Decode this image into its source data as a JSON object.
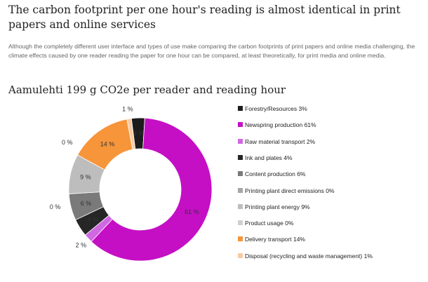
{
  "headline": "The carbon footprint per one hour's reading is almost identical in print papers and online services",
  "intro": "Although the completely different user interface and types of use make comparing the carbon footprints of print papers and online media challenging, the climate effects caused by one reader reading the paper for one hour can be compared, at least theoretically, for print media and online media.",
  "chart_data": {
    "type": "pie",
    "style": "donut",
    "title": "Aamulehti 199 g CO2e per reader and reading hour",
    "legend_position": "right",
    "unit": "%",
    "slices": [
      {
        "name": "Forestry/Resources 3%",
        "value": 3,
        "label": "3 %",
        "color": "#1c1c1c"
      },
      {
        "name": "Newspring production 61%",
        "value": 61,
        "label": "61 %",
        "color": "#c50fc5"
      },
      {
        "name": "Raw material transport 2%",
        "value": 2,
        "label": "2 %",
        "color": "#d068e2"
      },
      {
        "name": "Ink and plates 4%",
        "value": 4,
        "label": "4 %",
        "color": "#262626"
      },
      {
        "name": "Content production  6%",
        "value": 6,
        "label": "6 %",
        "color": "#7a7a7a"
      },
      {
        "name": "Printing plant direct emissions 0%",
        "value": 0,
        "label": "0 %",
        "color": "#a6a6a6"
      },
      {
        "name": "Printing plant energy 9%",
        "value": 9,
        "label": "9 %",
        "color": "#bdbdbd"
      },
      {
        "name": "Product usage 0%",
        "value": 0,
        "label": "0 %",
        "color": "#d0d0d0"
      },
      {
        "name": "Delivery transport 14%",
        "value": 14,
        "label": "14 %",
        "color": "#f7953a"
      },
      {
        "name": "Disposal (recycling and waste management) 1%",
        "value": 1,
        "label": "1 %",
        "color": "#f8cba4"
      }
    ]
  }
}
